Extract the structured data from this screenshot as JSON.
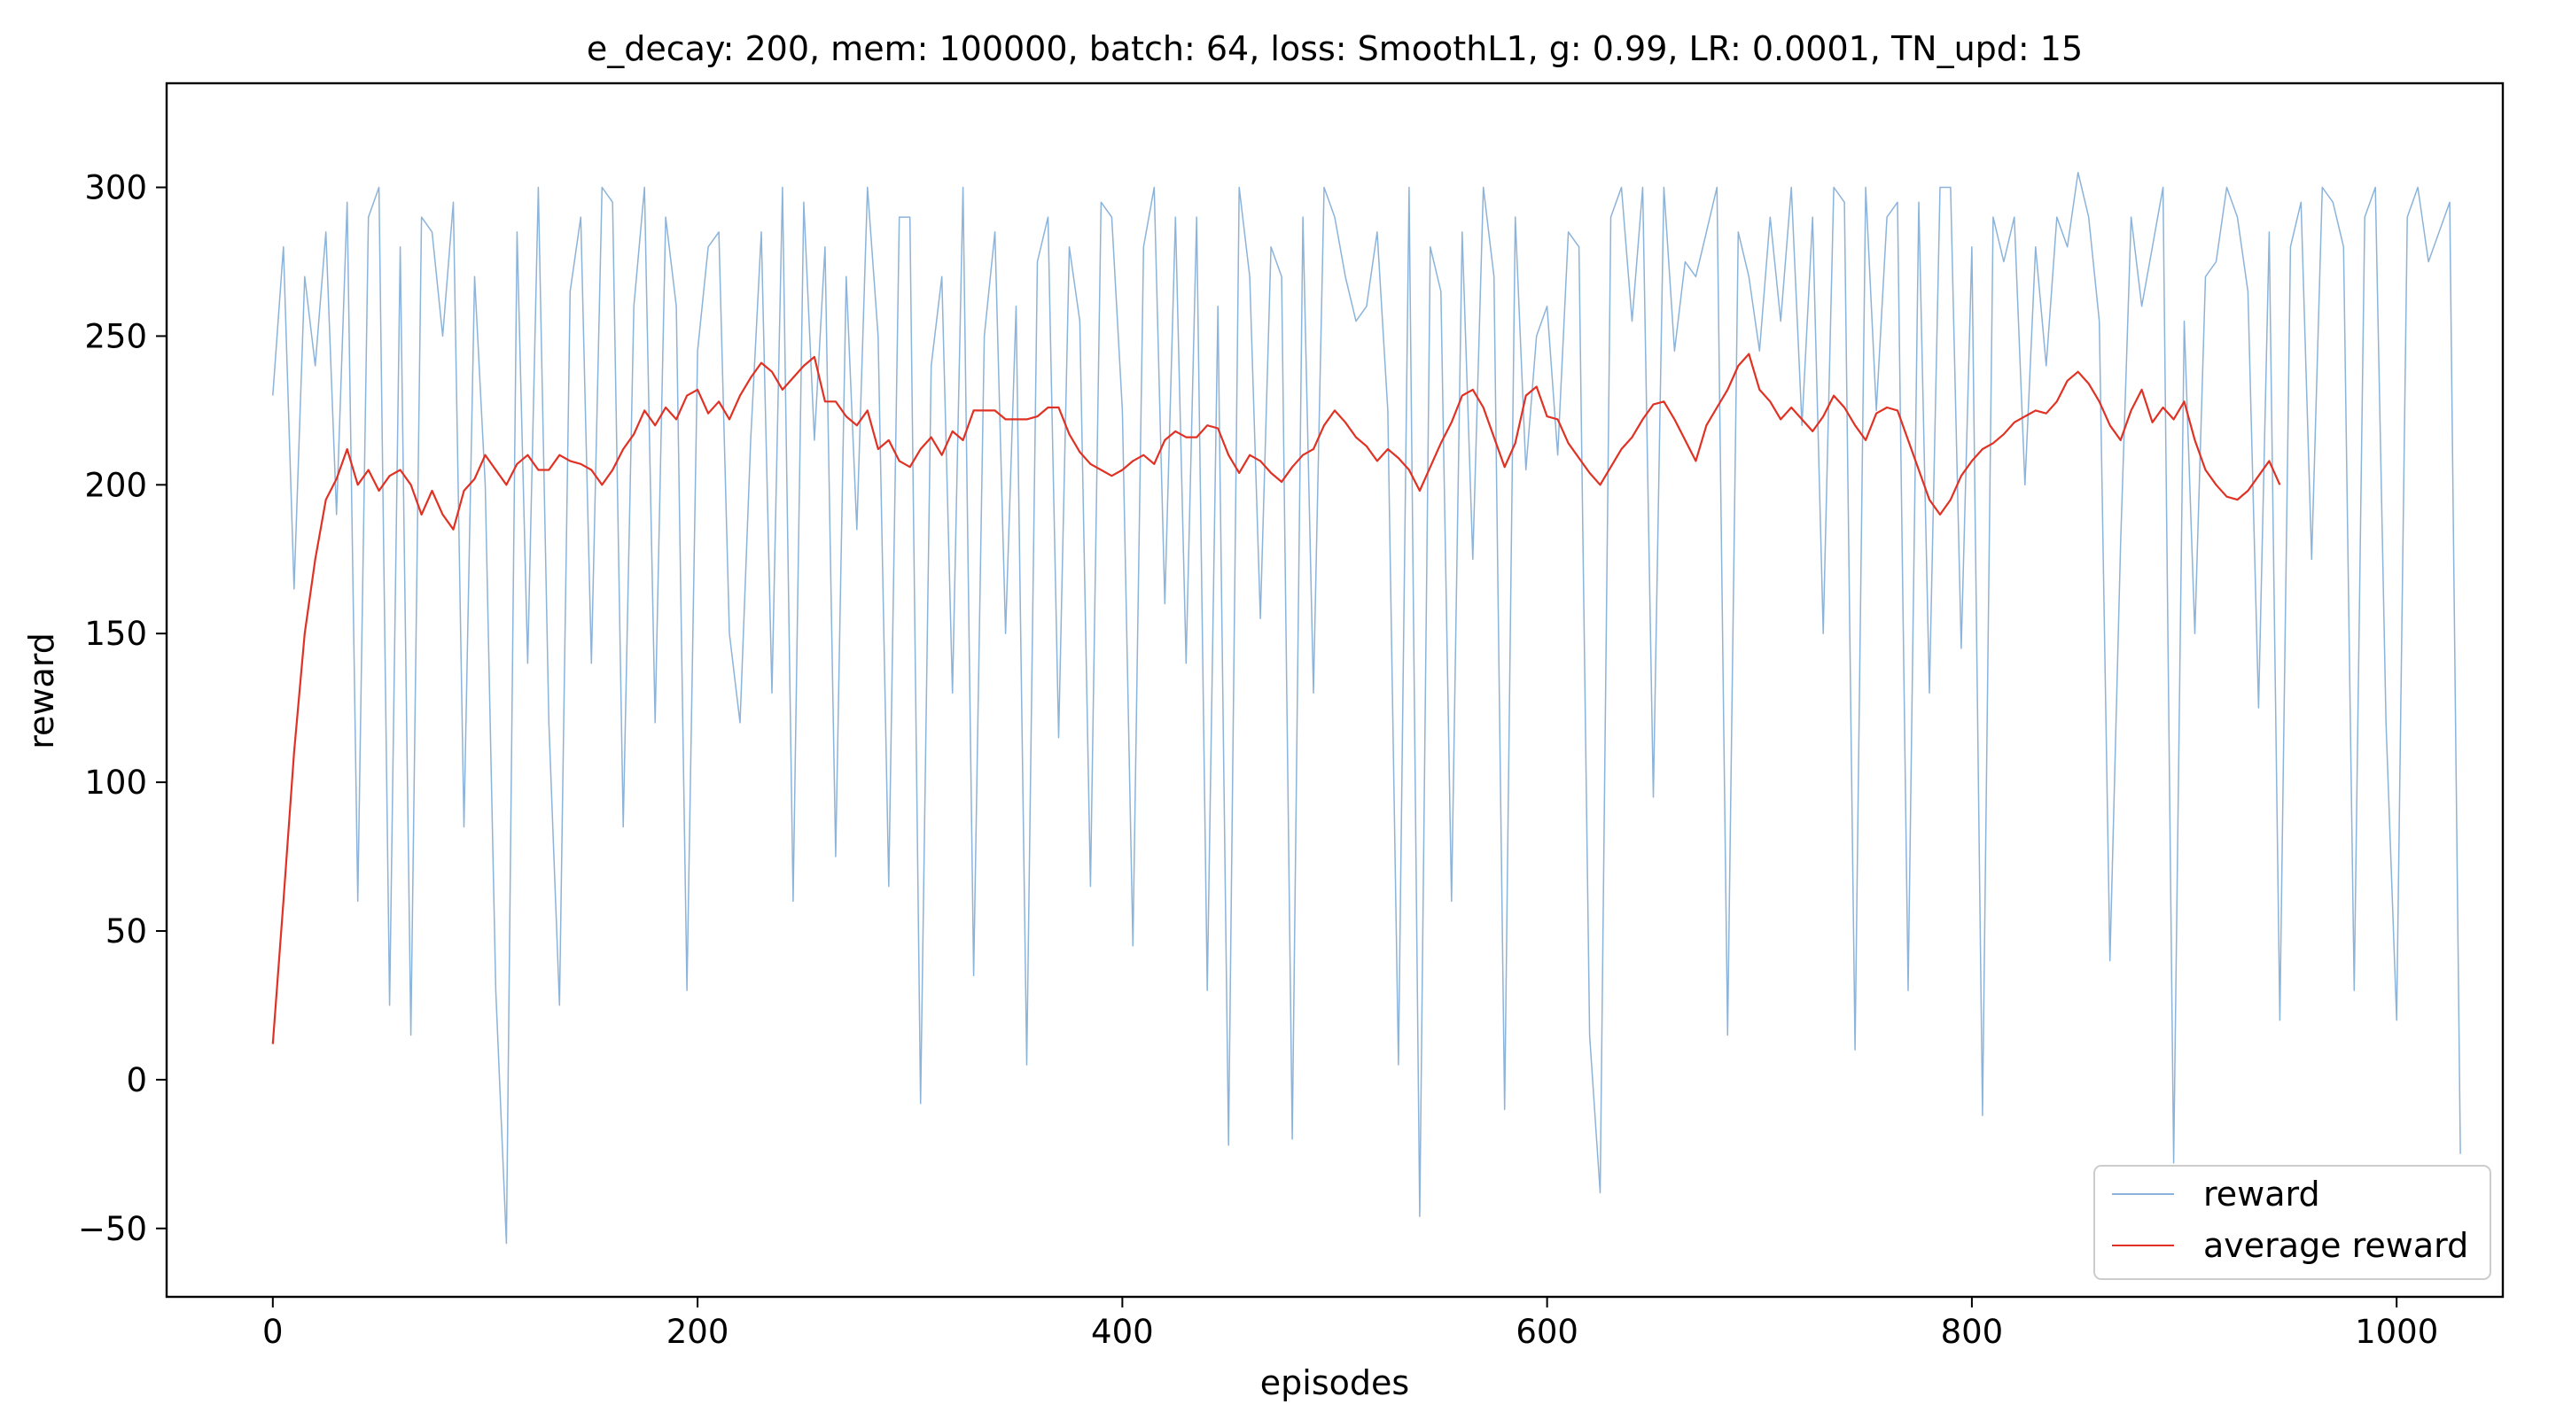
{
  "chart_data": {
    "type": "line",
    "title": "e_decay: 200, mem: 100000, batch: 64, loss: SmoothL1, g: 0.99, LR: 0.0001, TN_upd: 15",
    "xlabel": "episodes",
    "ylabel": "reward",
    "xlim": [
      -50,
      1050
    ],
    "ylim": [
      -73,
      335
    ],
    "xticks": [
      0,
      200,
      400,
      600,
      800,
      1000
    ],
    "xtick_labels": [
      "0",
      "200",
      "400",
      "600",
      "800",
      "1000"
    ],
    "yticks": [
      -50,
      0,
      50,
      100,
      150,
      200,
      250,
      300
    ],
    "ytick_labels": [
      "−50",
      "0",
      "50",
      "100",
      "150",
      "200",
      "250",
      "300"
    ],
    "grid": false,
    "legend_position": "bottom-right",
    "colors": {
      "reward": "#6699cc",
      "average_reward": "#e03224"
    },
    "series": [
      {
        "name": "reward",
        "x_start": 0,
        "x_step": 5,
        "values": [
          230,
          280,
          165,
          270,
          240,
          285,
          190,
          295,
          60,
          290,
          300,
          25,
          280,
          15,
          290,
          285,
          250,
          295,
          85,
          270,
          200,
          30,
          -55,
          285,
          140,
          300,
          120,
          25,
          265,
          290,
          140,
          300,
          295,
          85,
          260,
          300,
          120,
          290,
          260,
          30,
          245,
          280,
          285,
          150,
          120,
          215,
          285,
          130,
          300,
          60,
          295,
          215,
          280,
          75,
          270,
          185,
          300,
          250,
          65,
          290,
          290,
          -8,
          240,
          270,
          130,
          300,
          35,
          250,
          285,
          150,
          260,
          5,
          275,
          290,
          115,
          280,
          255,
          65,
          295,
          290,
          225,
          45,
          280,
          300,
          160,
          290,
          140,
          290,
          30,
          260,
          -22,
          300,
          270,
          155,
          280,
          270,
          -20,
          290,
          130,
          300,
          290,
          270,
          255,
          260,
          285,
          225,
          5,
          300,
          -46,
          280,
          265,
          60,
          285,
          175,
          300,
          270,
          -10,
          290,
          205,
          250,
          260,
          210,
          285,
          280,
          15,
          -38,
          290,
          300,
          255,
          300,
          95,
          300,
          245,
          275,
          270,
          285,
          300,
          15,
          285,
          270,
          245,
          290,
          255,
          300,
          220,
          290,
          150,
          300,
          295,
          10,
          300,
          225,
          290,
          295,
          30,
          295,
          130,
          300,
          300,
          145,
          280,
          -12,
          290,
          275,
          290,
          200,
          280,
          240,
          290,
          280,
          305,
          290,
          255,
          40,
          180,
          290,
          260,
          280,
          300,
          -28,
          255,
          150,
          270,
          275,
          300,
          290,
          265,
          125,
          285,
          20,
          280,
          295,
          175,
          300,
          295,
          280,
          30,
          290,
          300,
          120,
          20,
          290,
          300,
          275,
          285,
          295,
          -25
        ]
      },
      {
        "name": "average reward",
        "x_start": 0,
        "x_step": 5,
        "values": [
          12,
          60,
          110,
          150,
          175,
          195,
          202,
          212,
          200,
          205,
          198,
          203,
          205,
          200,
          190,
          198,
          190,
          185,
          198,
          202,
          210,
          205,
          200,
          207,
          210,
          205,
          205,
          210,
          208,
          207,
          205,
          200,
          205,
          212,
          217,
          225,
          220,
          226,
          222,
          230,
          232,
          224,
          228,
          222,
          230,
          236,
          241,
          238,
          232,
          236,
          240,
          243,
          228,
          228,
          223,
          220,
          225,
          212,
          215,
          208,
          206,
          212,
          216,
          210,
          218,
          215,
          225,
          225,
          225,
          222,
          222,
          222,
          223,
          226,
          226,
          217,
          211,
          207,
          205,
          203,
          205,
          208,
          210,
          207,
          215,
          218,
          216,
          216,
          220,
          219,
          210,
          204,
          210,
          208,
          204,
          201,
          206,
          210,
          212,
          220,
          225,
          221,
          216,
          213,
          208,
          212,
          209,
          205,
          198,
          206,
          214,
          221,
          230,
          232,
          226,
          216,
          206,
          214,
          230,
          233,
          223,
          222,
          214,
          209,
          204,
          200,
          206,
          212,
          216,
          222,
          227,
          228,
          222,
          215,
          208,
          220,
          226,
          232,
          240,
          244,
          232,
          228,
          222,
          226,
          222,
          218,
          223,
          230,
          226,
          220,
          215,
          224,
          226,
          225,
          215,
          205,
          195,
          190,
          195,
          203,
          208,
          212,
          214,
          217,
          221,
          223,
          225,
          224,
          228,
          235,
          238,
          234,
          228,
          220,
          215,
          225,
          232,
          221,
          226,
          222,
          228,
          215,
          205,
          200,
          196,
          195,
          198,
          203,
          208,
          200
        ]
      }
    ]
  },
  "legend": {
    "items": [
      {
        "label": "reward"
      },
      {
        "label": "average reward"
      }
    ]
  }
}
